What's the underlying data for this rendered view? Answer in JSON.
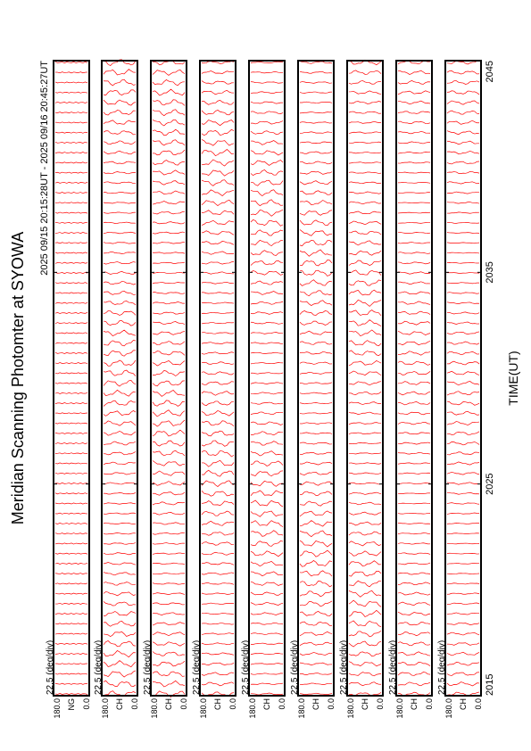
{
  "chart_data": {
    "type": "line",
    "title": "Meridian Scanning Photomter at SYOWA",
    "subtitle": "2025 09/15 20:15:28UT - 2025 09/16 20:45:27UT",
    "xlabel": "TIME(UT)",
    "x_ticks": [
      "2015",
      "2025",
      "2035",
      "2045"
    ],
    "scale_label": "22.5 (deg/div)",
    "y_tick_top": "180.0",
    "y_tick_bottom": "0.0",
    "grid": false,
    "line_color": "#ff0000",
    "channels": [
      "NG",
      "CH",
      "CH",
      "CH",
      "CH",
      "CH",
      "CH",
      "CH",
      "CH"
    ]
  }
}
